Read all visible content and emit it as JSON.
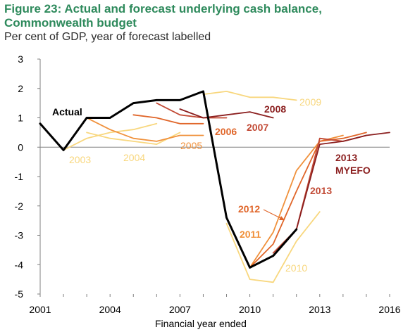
{
  "title_line1": "Figure 23: Actual and forecast underlying cash balance,",
  "title_line2": "Commonwealth budget",
  "subtitle": "Per cent of GDP, year of forecast labelled",
  "colors": {
    "title": "#2e8a5c",
    "actual": "#000000",
    "light_yellow": "#f8d77e",
    "orange": "#f0913c",
    "dark_orange": "#e0662a",
    "red": "#c24a35",
    "dark_red": "#8b1f1f"
  },
  "chart_data": {
    "type": "line",
    "xlabel": "Financial year ended",
    "ylabel": "",
    "xlim": [
      2001,
      2016
    ],
    "ylim": [
      -5,
      3
    ],
    "x_ticks": [
      "2001",
      "2004",
      "2007",
      "2010",
      "2013",
      "2016"
    ],
    "y_ticks": [
      "3",
      "2",
      "1",
      "0",
      "-1",
      "-2",
      "-3",
      "-4",
      "-5"
    ],
    "series": [
      {
        "name": "Actual",
        "color": "#000000",
        "width": 3,
        "x": [
          2001,
          2002,
          2003,
          2004,
          2005,
          2006,
          2007,
          2008,
          2009,
          2010,
          2011,
          2012
        ],
        "y": [
          0.8,
          -0.1,
          1.0,
          1.0,
          1.5,
          1.6,
          1.6,
          1.9,
          -2.4,
          -4.1,
          -3.7,
          -2.8
        ]
      },
      {
        "name": "2003",
        "color": "#f8d77e",
        "width": 1.8,
        "x": [
          2002,
          2003,
          2004,
          2005,
          2006
        ],
        "y": [
          -0.1,
          0.3,
          0.5,
          0.6,
          0.8
        ]
      },
      {
        "name": "2004",
        "color": "#f8d77e",
        "width": 1.8,
        "x": [
          2003,
          2004,
          2005,
          2006,
          2007
        ],
        "y": [
          0.5,
          0.3,
          0.2,
          0.1,
          0.5
        ]
      },
      {
        "name": "2005",
        "color": "#f0913c",
        "width": 1.8,
        "x": [
          2003,
          2004,
          2005,
          2006,
          2007,
          2008
        ],
        "y": [
          1.0,
          0.6,
          0.3,
          0.2,
          0.4,
          0.4
        ]
      },
      {
        "name": "2006",
        "color": "#e0662a",
        "width": 1.8,
        "x": [
          2005,
          2006,
          2007,
          2008
        ],
        "y": [
          1.1,
          1.0,
          0.8,
          0.8
        ]
      },
      {
        "name": "2007",
        "color": "#c24a35",
        "width": 1.8,
        "x": [
          2006,
          2007,
          2008,
          2009
        ],
        "y": [
          1.5,
          1.1,
          1.0,
          1.0
        ]
      },
      {
        "name": "2008",
        "color": "#8b1f1f",
        "width": 1.8,
        "x": [
          2007,
          2008,
          2009,
          2010,
          2011
        ],
        "y": [
          1.3,
          1.0,
          1.1,
          1.2,
          1.0
        ]
      },
      {
        "name": "2009",
        "color": "#f8d77e",
        "width": 1.8,
        "x": [
          2008,
          2009,
          2010,
          2011,
          2012
        ],
        "y": [
          1.8,
          1.9,
          1.7,
          1.7,
          1.6
        ]
      },
      {
        "name": "2010",
        "color": "#f8d77e",
        "width": 1.8,
        "x": [
          2009,
          2010,
          2011,
          2012,
          2013
        ],
        "y": [
          -2.6,
          -4.5,
          -4.6,
          -3.2,
          -2.2
        ]
      },
      {
        "name": "2011",
        "color": "#f0913c",
        "width": 1.8,
        "x": [
          2010,
          2011,
          2012,
          2013,
          2014
        ],
        "y": [
          -4.1,
          -2.9,
          -0.8,
          0.2,
          0.4
        ]
      },
      {
        "name": "2012",
        "color": "#e0662a",
        "width": 1.8,
        "x": [
          2010,
          2011,
          2012,
          2013,
          2014,
          2015
        ],
        "y": [
          -4.1,
          -3.3,
          -1.5,
          0.2,
          0.3,
          0.5
        ]
      },
      {
        "name": "2013",
        "color": "#c24a35",
        "width": 1.8,
        "x": [
          2011,
          2012,
          2013,
          2014,
          2015
        ],
        "y": [
          -3.6,
          -2.8,
          0.3,
          0.2,
          0.4
        ]
      },
      {
        "name": "2013 MYEFO",
        "color": "#8b1f1f",
        "width": 1.8,
        "x": [
          2012,
          2013,
          2014,
          2015,
          2016
        ],
        "y": [
          -2.8,
          0.1,
          0.2,
          0.4,
          0.5
        ]
      }
    ],
    "labels": [
      {
        "text": "Actual",
        "line2": "",
        "color": "#000000",
        "bold": true
      },
      {
        "text": "2003",
        "line2": "",
        "color": "#f8d77e",
        "bold": false
      },
      {
        "text": "2004",
        "line2": "",
        "color": "#f8d77e",
        "bold": false
      },
      {
        "text": "2005",
        "line2": "",
        "color": "#f0913c",
        "bold": false
      },
      {
        "text": "2006",
        "line2": "",
        "color": "#e0662a",
        "bold": true
      },
      {
        "text": "2007",
        "line2": "",
        "color": "#c24a35",
        "bold": true
      },
      {
        "text": "2008",
        "line2": "",
        "color": "#8b1f1f",
        "bold": true
      },
      {
        "text": "2009",
        "line2": "",
        "color": "#f8d77e",
        "bold": false
      },
      {
        "text": "2010",
        "line2": "",
        "color": "#f8d77e",
        "bold": false
      },
      {
        "text": "2011",
        "line2": "",
        "color": "#f0913c",
        "bold": true
      },
      {
        "text": "2012",
        "line2": "",
        "color": "#e0662a",
        "bold": true
      },
      {
        "text": "2013",
        "line2": "",
        "color": "#c24a35",
        "bold": true
      },
      {
        "text": "2013",
        "line2": "MYEFO",
        "color": "#8b1f1f",
        "bold": true
      }
    ]
  }
}
